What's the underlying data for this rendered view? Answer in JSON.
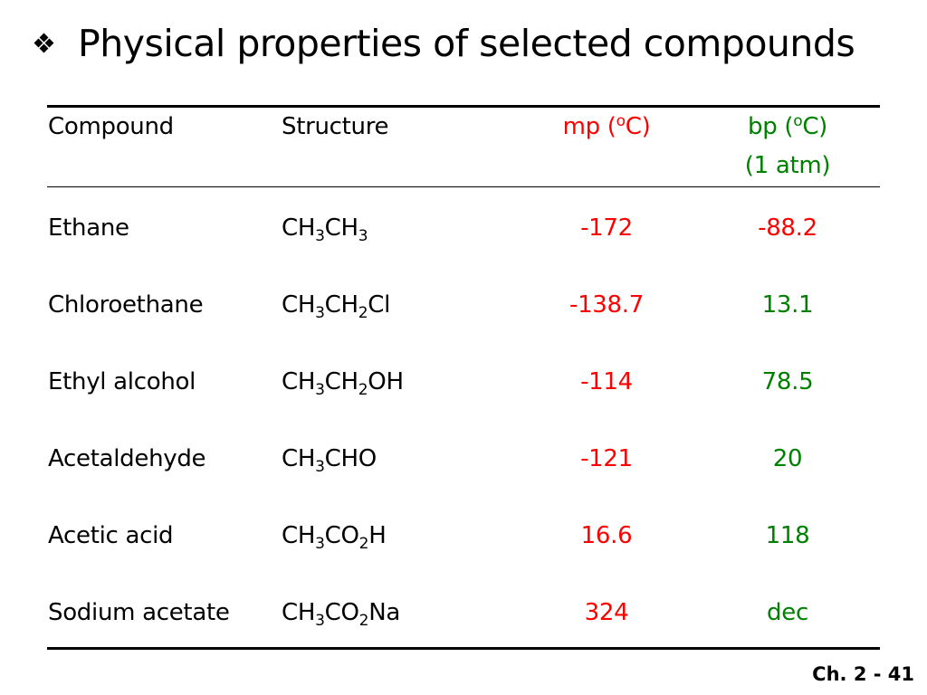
{
  "title": "Physical properties of selected compounds",
  "table": {
    "headers": {
      "compound": "Compound",
      "structure": "Structure",
      "mp_prefix": "mp (",
      "mp_sup": "o",
      "mp_suffix": "C)",
      "bp_prefix": "bp (",
      "bp_sup": "o",
      "bp_suffix": "C)",
      "bp_line2": "(1 atm)"
    },
    "rows": [
      {
        "compound": "Ethane",
        "structure": [
          [
            "CH",
            ""
          ],
          [
            "3",
            "sub"
          ],
          [
            "CH",
            ""
          ],
          [
            "3",
            "sub"
          ]
        ],
        "mp": "-172",
        "bp": "-88.2",
        "bp_color": "red"
      },
      {
        "compound": "Chloroethane",
        "structure": [
          [
            "CH",
            ""
          ],
          [
            "3",
            "sub"
          ],
          [
            "CH",
            ""
          ],
          [
            "2",
            "sub"
          ],
          [
            "Cl",
            ""
          ]
        ],
        "mp": "-138.7",
        "bp": "13.1",
        "bp_color": "green"
      },
      {
        "compound": "Ethyl alcohol",
        "structure": [
          [
            "CH",
            ""
          ],
          [
            "3",
            "sub"
          ],
          [
            "CH",
            ""
          ],
          [
            "2",
            "sub"
          ],
          [
            "OH",
            ""
          ]
        ],
        "mp": "-114",
        "bp": "78.5",
        "bp_color": "green"
      },
      {
        "compound": "Acetaldehyde",
        "structure": [
          [
            "CH",
            ""
          ],
          [
            "3",
            "sub"
          ],
          [
            "CHO",
            ""
          ]
        ],
        "mp": "-121",
        "bp": "20",
        "bp_color": "green"
      },
      {
        "compound": "Acetic acid",
        "structure": [
          [
            "CH",
            ""
          ],
          [
            "3",
            "sub"
          ],
          [
            "CO",
            ""
          ],
          [
            "2",
            "sub"
          ],
          [
            "H",
            ""
          ]
        ],
        "mp": "16.6",
        "bp": "118",
        "bp_color": "green"
      },
      {
        "compound": "Sodium acetate",
        "structure": [
          [
            "CH",
            ""
          ],
          [
            "3",
            "sub"
          ],
          [
            "CO",
            ""
          ],
          [
            "2",
            "sub"
          ],
          [
            "Na",
            ""
          ]
        ],
        "mp": "324",
        "bp": "dec",
        "bp_color": "green"
      }
    ]
  },
  "footer": "Ch. 2 - 41",
  "colors": {
    "mp": "#ff0000",
    "bp_header": "#008000",
    "text": "#000000"
  }
}
